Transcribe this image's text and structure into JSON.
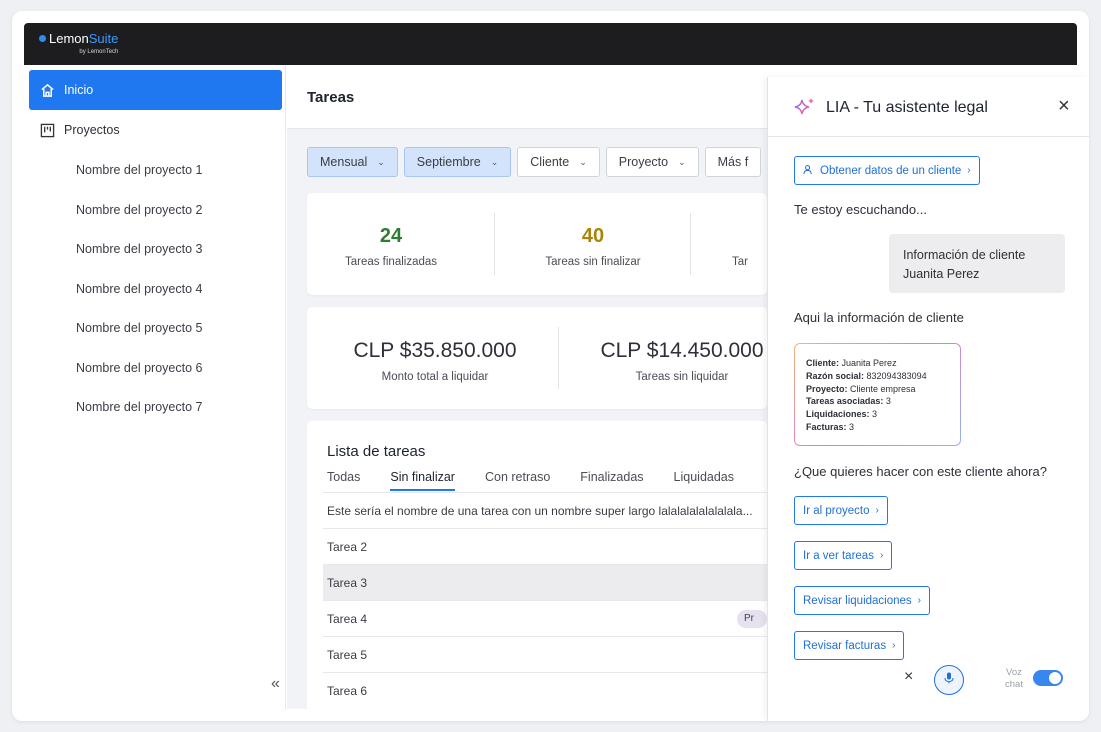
{
  "brand": {
    "name_a": "Lemon",
    "name_b": "Suite",
    "by": "by LemonTech"
  },
  "sidebar": {
    "home_label": "Inicio",
    "projects_label": "Proyectos",
    "projects": [
      "Nombre del proyecto 1",
      "Nombre del proyecto 2",
      "Nombre del proyecto 3",
      "Nombre del proyecto 4",
      "Nombre del proyecto 5",
      "Nombre del proyecto 6",
      "Nombre del proyecto 7"
    ],
    "collapse_glyph": "«"
  },
  "main": {
    "title": "Tareas",
    "filters": [
      {
        "label": "Mensual",
        "selected": true
      },
      {
        "label": "Septiembre",
        "selected": true
      },
      {
        "label": "Cliente",
        "selected": false
      },
      {
        "label": "Proyecto",
        "selected": false
      },
      {
        "label": "Más f",
        "selected": false
      }
    ],
    "stats": [
      {
        "value": "24",
        "label": "Tareas finalizadas",
        "color": "#2e7d32"
      },
      {
        "value": "40",
        "label": "Tareas sin finalizar",
        "color": "#a8860a"
      },
      {
        "value": "",
        "label": "Tar",
        "color": "#2d3038"
      }
    ],
    "money": [
      {
        "value": "CLP $35.850.000",
        "label": "Monto total a liquidar"
      },
      {
        "value": "CLP $14.450.000",
        "label": "Tareas sin liquidar"
      }
    ],
    "list": {
      "title": "Lista de tareas",
      "tabs": [
        "Todas",
        "Sin finalizar",
        "Con retraso",
        "Finalizadas",
        "Liquidadas"
      ],
      "active_tab": "Sin finalizar",
      "rows": [
        "Este sería el nombre de una tarea con un nombre super largo lalalalalalalalala...",
        "Tarea 2",
        "Tarea 3",
        "Tarea 4",
        "Tarea 5",
        "Tarea 6"
      ],
      "pill_text": "Pr"
    }
  },
  "assistant": {
    "title": "LIA - Tu asistente legal",
    "get_client_chip": "Obtener datos de un cliente",
    "listening": "Te estoy escuchando...",
    "user_bubble": [
      "Información de cliente",
      "Juanita Perez"
    ],
    "reply": "Aqui la información de cliente",
    "client_info": [
      {
        "k": "Cliente:",
        "v": "Juanita Perez"
      },
      {
        "k": "Razón social:",
        "v": "832094383094"
      },
      {
        "k": "Proyecto:",
        "v": "Cliente empresa"
      },
      {
        "k": "Tareas asociadas:",
        "v": "3"
      },
      {
        "k": "Liquidaciones:",
        "v": "3"
      },
      {
        "k": "Facturas:",
        "v": "3"
      }
    ],
    "question": "¿Que quieres hacer con este cliente ahora?",
    "actions": [
      "Ir al proyecto",
      "Ir a ver tareas",
      "Revisar liquidaciones",
      "Revisar facturas"
    ],
    "voice_label_1": "Voz",
    "voice_label_2": "chat",
    "voice_on": true
  }
}
